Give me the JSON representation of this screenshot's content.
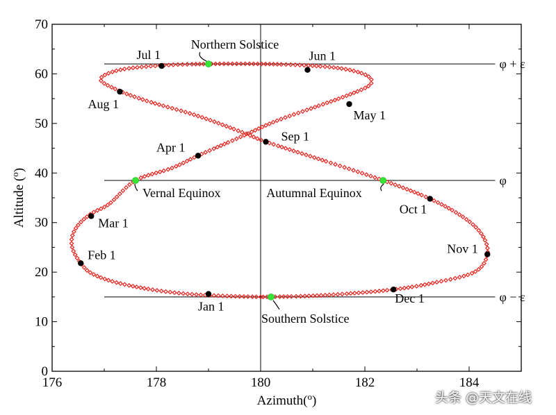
{
  "chart_data": {
    "type": "line",
    "title": "",
    "xlabel": "Azimuth(o)",
    "ylabel": "Altitude (o)",
    "xlim": [
      176,
      185
    ],
    "ylim": [
      0,
      70
    ],
    "x_ticks": [
      "176",
      "178",
      "180",
      "182",
      "184"
    ],
    "y_ticks": [
      "0",
      "10",
      "20",
      "30",
      "40",
      "50",
      "60",
      "70"
    ],
    "series_color": "#e8201a",
    "analemma_points": [
      {
        "x": 180.0,
        "y": 15.0
      },
      {
        "x": 179.3,
        "y": 15.2
      },
      {
        "x": 178.6,
        "y": 15.6
      },
      {
        "x": 177.9,
        "y": 16.5
      },
      {
        "x": 177.2,
        "y": 18.0
      },
      {
        "x": 176.75,
        "y": 19.8
      },
      {
        "x": 176.55,
        "y": 21.8
      },
      {
        "x": 176.4,
        "y": 24.5
      },
      {
        "x": 176.38,
        "y": 27.0
      },
      {
        "x": 176.5,
        "y": 29.5
      },
      {
        "x": 176.75,
        "y": 31.8
      },
      {
        "x": 177.1,
        "y": 33.8
      },
      {
        "x": 177.6,
        "y": 38.5
      },
      {
        "x": 178.3,
        "y": 41.0
      },
      {
        "x": 178.8,
        "y": 43.5
      },
      {
        "x": 179.6,
        "y": 47.2
      },
      {
        "x": 180.3,
        "y": 50.5
      },
      {
        "x": 181.1,
        "y": 53.5
      },
      {
        "x": 181.7,
        "y": 55.8
      },
      {
        "x": 182.1,
        "y": 57.8
      },
      {
        "x": 182.05,
        "y": 59.6
      },
      {
        "x": 181.6,
        "y": 61.0
      },
      {
        "x": 180.9,
        "y": 61.7
      },
      {
        "x": 180.0,
        "y": 62.0
      },
      {
        "x": 179.0,
        "y": 62.0
      },
      {
        "x": 178.1,
        "y": 61.7
      },
      {
        "x": 177.3,
        "y": 60.8
      },
      {
        "x": 176.93,
        "y": 59.0
      },
      {
        "x": 177.2,
        "y": 57.0
      },
      {
        "x": 177.8,
        "y": 54.6
      },
      {
        "x": 178.8,
        "y": 51.5
      },
      {
        "x": 179.7,
        "y": 48.0
      },
      {
        "x": 180.1,
        "y": 46.3
      },
      {
        "x": 181.3,
        "y": 42.2
      },
      {
        "x": 182.35,
        "y": 38.5
      },
      {
        "x": 183.25,
        "y": 34.8
      },
      {
        "x": 183.9,
        "y": 31.0
      },
      {
        "x": 184.25,
        "y": 27.5
      },
      {
        "x": 184.35,
        "y": 23.6
      },
      {
        "x": 184.1,
        "y": 20.0
      },
      {
        "x": 183.3,
        "y": 17.8
      },
      {
        "x": 182.55,
        "y": 16.5
      },
      {
        "x": 181.6,
        "y": 15.6
      },
      {
        "x": 180.8,
        "y": 15.15
      },
      {
        "x": 180.0,
        "y": 15.0
      }
    ],
    "month_markers": [
      {
        "label": "Jan 1",
        "x": 179.0,
        "y": 15.6
      },
      {
        "label": "Feb 1",
        "x": 176.55,
        "y": 21.8
      },
      {
        "label": "Mar 1",
        "x": 176.75,
        "y": 31.3
      },
      {
        "label": "Apr 1",
        "x": 178.8,
        "y": 43.5
      },
      {
        "label": "May 1",
        "x": 181.7,
        "y": 53.9
      },
      {
        "label": "Jun 1",
        "x": 180.9,
        "y": 60.8
      },
      {
        "label": "Jul 1",
        "x": 178.1,
        "y": 61.6
      },
      {
        "label": "Aug 1",
        "x": 177.3,
        "y": 56.4
      },
      {
        "label": "Sep 1",
        "x": 180.1,
        "y": 46.3
      },
      {
        "label": "Oct 1",
        "x": 183.25,
        "y": 34.8
      },
      {
        "label": "Nov 1",
        "x": 184.35,
        "y": 23.6
      },
      {
        "label": "Dec 1",
        "x": 182.55,
        "y": 16.5
      }
    ],
    "special_points": [
      {
        "label": "Northern Solstice",
        "x": 179.0,
        "y": 62.0
      },
      {
        "label": "Vernal Equinox",
        "x": 177.6,
        "y": 38.5
      },
      {
        "label": "Autumnal Equinox",
        "x": 182.35,
        "y": 38.5
      },
      {
        "label": "Southern Solstice",
        "x": 180.2,
        "y": 15.0
      }
    ],
    "reference_lines": [
      {
        "label": "φ + ε",
        "y": 62.0
      },
      {
        "label": "φ",
        "y": 38.5
      },
      {
        "label": "φ − ε",
        "y": 15.0
      }
    ],
    "vertical_line_x": 180.0,
    "reference_line_x_range": [
      177,
      184.5
    ]
  },
  "watermark": "头条 @天文在线"
}
